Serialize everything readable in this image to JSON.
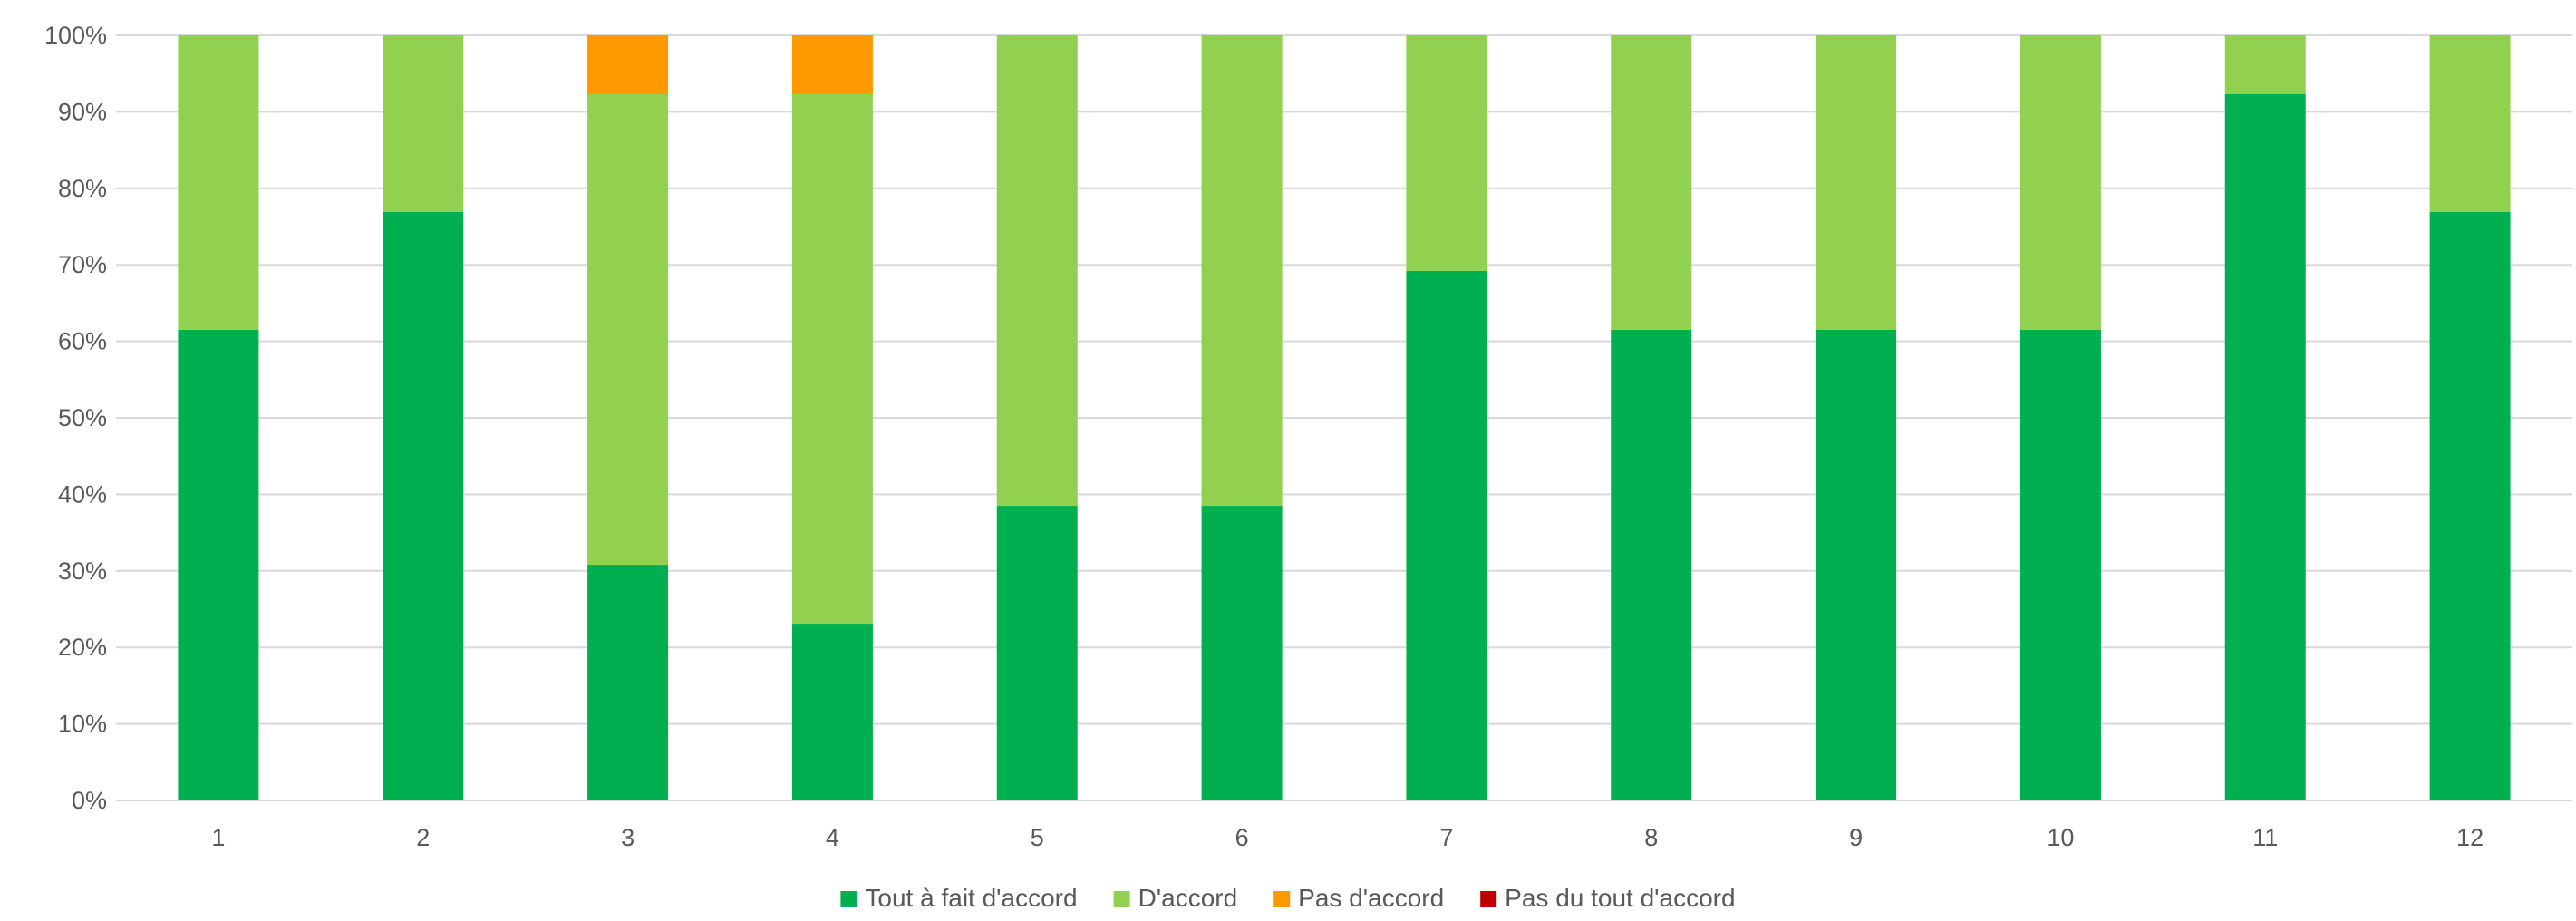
{
  "chart_data": {
    "type": "bar",
    "stacked": true,
    "normalized_percent": true,
    "title": "",
    "xlabel": "",
    "ylabel": "",
    "ylim": [
      0,
      100
    ],
    "yticks": [
      "0%",
      "10%",
      "20%",
      "30%",
      "40%",
      "50%",
      "60%",
      "70%",
      "80%",
      "90%",
      "100%"
    ],
    "yticks_values": [
      0,
      10,
      20,
      30,
      40,
      50,
      60,
      70,
      80,
      90,
      100
    ],
    "grid": true,
    "legend_position": "bottom",
    "categories": [
      "1",
      "2",
      "3",
      "4",
      "5",
      "6",
      "7",
      "8",
      "9",
      "10",
      "11",
      "12"
    ],
    "series": [
      {
        "name": "Tout à fait d'accord",
        "color": "#00B050",
        "values": [
          61.5,
          76.9,
          30.8,
          23.1,
          38.5,
          38.5,
          69.2,
          61.5,
          61.5,
          61.5,
          92.3,
          76.9
        ]
      },
      {
        "name": "D'accord",
        "color": "#92D050",
        "values": [
          38.5,
          23.1,
          61.5,
          69.2,
          61.5,
          61.5,
          30.8,
          38.5,
          38.5,
          38.5,
          7.7,
          23.1
        ]
      },
      {
        "name": "Pas d'accord",
        "color": "#FF9900",
        "values": [
          0,
          0,
          7.7,
          7.7,
          0,
          0,
          0,
          0,
          0,
          0,
          0,
          0
        ]
      },
      {
        "name": "Pas du tout d'accord",
        "color": "#C00000",
        "values": [
          0,
          0,
          0,
          0,
          0,
          0,
          0,
          0,
          0,
          0,
          0,
          0
        ]
      }
    ]
  }
}
